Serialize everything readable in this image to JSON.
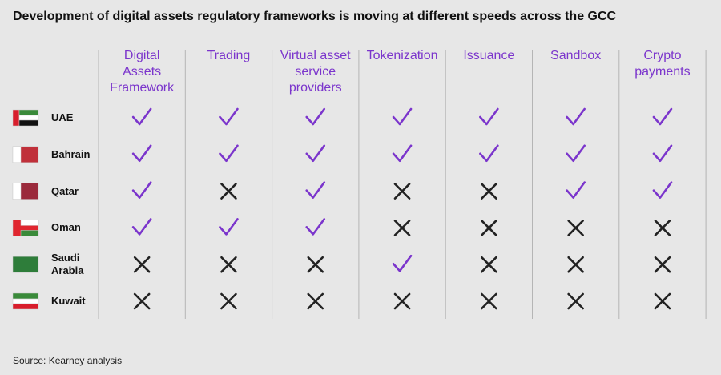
{
  "title": "Development of digital assets regulatory frameworks is moving at different speeds across the GCC",
  "table": {
    "columns": [
      "Digital Assets Framework",
      "Trading",
      "Virtual asset service providers",
      "Tokenization",
      "Issuance",
      "Sandbox",
      "Crypto payments"
    ],
    "rows": [
      {
        "country": "UAE",
        "cells": [
          true,
          true,
          true,
          true,
          true,
          true,
          true
        ]
      },
      {
        "country": "Bahrain",
        "cells": [
          true,
          true,
          true,
          true,
          true,
          true,
          true
        ]
      },
      {
        "country": "Qatar",
        "cells": [
          true,
          false,
          true,
          false,
          false,
          true,
          true
        ]
      },
      {
        "country": "Oman",
        "cells": [
          true,
          true,
          true,
          false,
          false,
          false,
          false
        ]
      },
      {
        "country": "Saudi Arabia",
        "cells": [
          false,
          false,
          false,
          true,
          false,
          false,
          false
        ]
      },
      {
        "country": "Kuwait",
        "cells": [
          false,
          false,
          false,
          false,
          false,
          false,
          false
        ]
      }
    ]
  },
  "source": "Source: Kearney analysis"
}
